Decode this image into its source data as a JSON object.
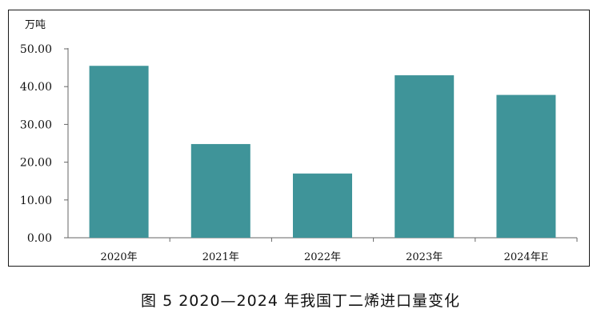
{
  "caption": "图 5 2020—2024 年我国丁二烯进口量变化",
  "chart_data": {
    "type": "bar",
    "ylabel": "万吨",
    "xlabel": "",
    "title": "",
    "categories": [
      "2020年",
      "2021年",
      "2022年",
      "2023年",
      "2024年E"
    ],
    "values": [
      45.5,
      24.8,
      17.0,
      43.0,
      37.8
    ],
    "ylim": [
      0,
      50
    ],
    "yticks": [
      "0.00",
      "10.00",
      "20.00",
      "30.00",
      "40.00",
      "50.00"
    ],
    "grid": false,
    "legend": "none",
    "bar_color": "#3f9499"
  }
}
